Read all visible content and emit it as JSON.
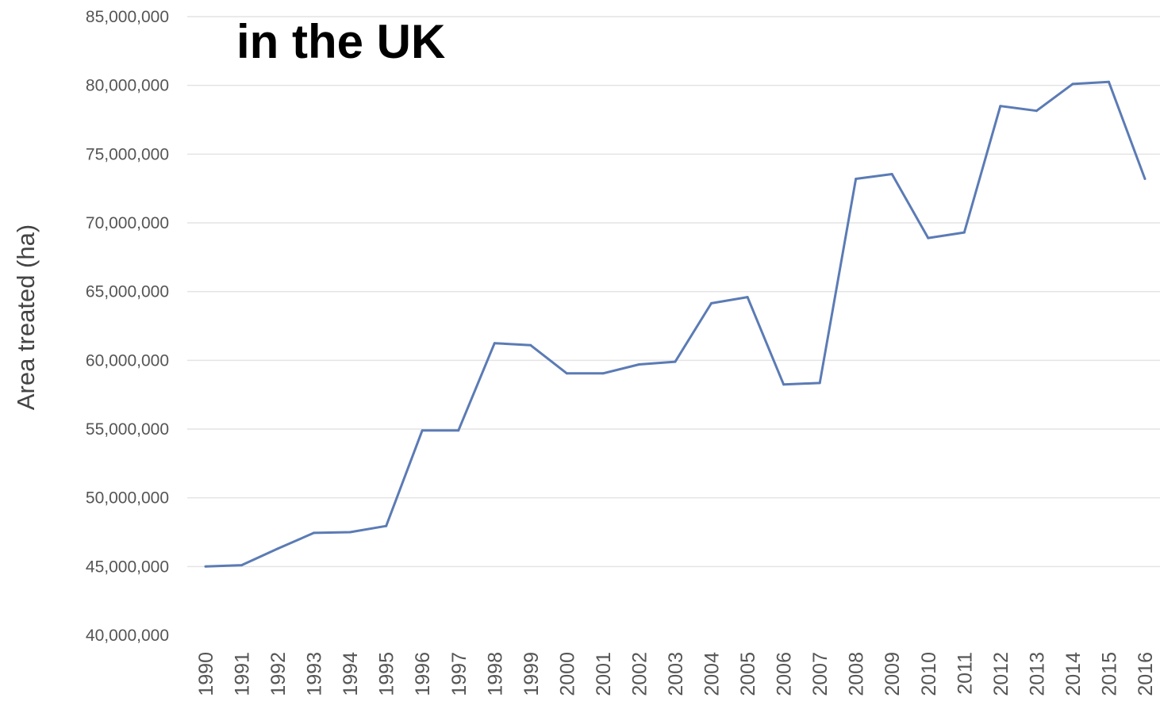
{
  "chart_data": {
    "type": "line",
    "title": "in the UK",
    "xlabel": "",
    "ylabel": "Area treated (ha)",
    "x": [
      "1990",
      "1991",
      "1992",
      "1993",
      "1994",
      "1995",
      "1996",
      "1997",
      "1998",
      "1999",
      "2000",
      "2001",
      "2002",
      "2003",
      "2004",
      "2005",
      "2006",
      "2007",
      "2008",
      "2009",
      "2010",
      "2011",
      "2012",
      "2013",
      "2014",
      "2015",
      "2016"
    ],
    "series": [
      {
        "values": [
          45000000,
          45100000,
          46300000,
          47450000,
          47500000,
          47950000,
          54900000,
          54900000,
          61250000,
          61100000,
          59050000,
          59050000,
          59700000,
          59900000,
          64150000,
          64600000,
          58250000,
          58350000,
          73200000,
          73550000,
          68900000,
          69300000,
          78500000,
          78150000,
          80100000,
          80250000,
          73200000
        ],
        "color": "#5b7bb5"
      }
    ],
    "ylim": [
      40000000,
      85000000
    ],
    "yticks": [
      "40,000,000",
      "45,000,000",
      "50,000,000",
      "55,000,000",
      "60,000,000",
      "65,000,000",
      "70,000,000",
      "75,000,000",
      "80,000,000",
      "85,000,000"
    ],
    "grid": true,
    "legend": "none"
  }
}
